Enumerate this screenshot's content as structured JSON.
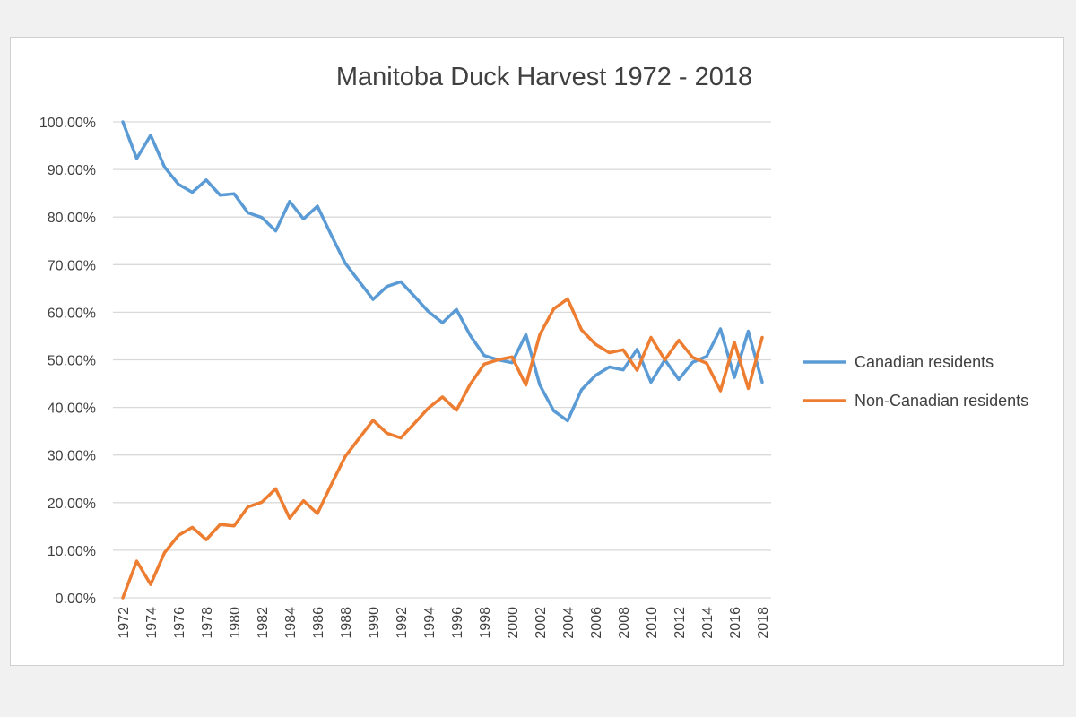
{
  "chart_data": {
    "type": "line",
    "title": "Manitoba Duck Harvest 1972 - 2018",
    "xlabel": "",
    "ylabel": "",
    "ylim": [
      0,
      100
    ],
    "y_ticks": [
      "0.00%",
      "10.00%",
      "20.00%",
      "30.00%",
      "40.00%",
      "50.00%",
      "60.00%",
      "70.00%",
      "80.00%",
      "90.00%",
      "100.00%"
    ],
    "x_tick_labels": [
      "1972",
      "1974",
      "1976",
      "1978",
      "1980",
      "1982",
      "1984",
      "1986",
      "1988",
      "1990",
      "1992",
      "1994",
      "1996",
      "1998",
      "2000",
      "2002",
      "2004",
      "2006",
      "2008",
      "2010",
      "2012",
      "2014",
      "2016",
      "2018"
    ],
    "grid": true,
    "legend_position": "right",
    "x": [
      1972,
      1973,
      1974,
      1975,
      1976,
      1977,
      1978,
      1979,
      1980,
      1981,
      1982,
      1983,
      1984,
      1985,
      1986,
      1987,
      1988,
      1989,
      1990,
      1991,
      1992,
      1993,
      1994,
      1995,
      1996,
      1997,
      1998,
      1999,
      2000,
      2001,
      2002,
      2003,
      2004,
      2005,
      2006,
      2007,
      2008,
      2009,
      2010,
      2011,
      2012,
      2013,
      2014,
      2015,
      2016,
      2017,
      2018
    ],
    "series": [
      {
        "name": "Canadian residents",
        "color": "#5b9bd5",
        "values": [
          100.0,
          92.3,
          97.2,
          90.5,
          86.9,
          85.2,
          87.8,
          84.6,
          84.9,
          80.9,
          79.9,
          77.1,
          83.3,
          79.6,
          82.3,
          76.2,
          70.3,
          66.5,
          62.7,
          65.4,
          66.4,
          63.3,
          60.1,
          57.8,
          60.6,
          55.1,
          50.9,
          50.0,
          49.4,
          55.3,
          44.7,
          39.3,
          37.2,
          43.7,
          46.7,
          48.5,
          47.9,
          52.2,
          45.3,
          50.0,
          45.9,
          49.5,
          50.7,
          56.5,
          46.3,
          56.0,
          45.3
        ]
      },
      {
        "name": "Non-Canadian residents",
        "color": "#ed7d31",
        "values": [
          0.0,
          7.7,
          2.8,
          9.5,
          13.1,
          14.8,
          12.2,
          15.4,
          15.1,
          19.1,
          20.1,
          22.9,
          16.7,
          20.4,
          17.7,
          23.8,
          29.7,
          33.5,
          37.3,
          34.6,
          33.6,
          36.7,
          39.9,
          42.2,
          39.4,
          44.9,
          49.1,
          50.0,
          50.6,
          44.7,
          55.3,
          60.7,
          62.8,
          56.3,
          53.3,
          51.5,
          52.1,
          47.8,
          54.7,
          50.0,
          54.1,
          50.5,
          49.3,
          43.5,
          53.7,
          44.0,
          54.7
        ]
      }
    ]
  }
}
